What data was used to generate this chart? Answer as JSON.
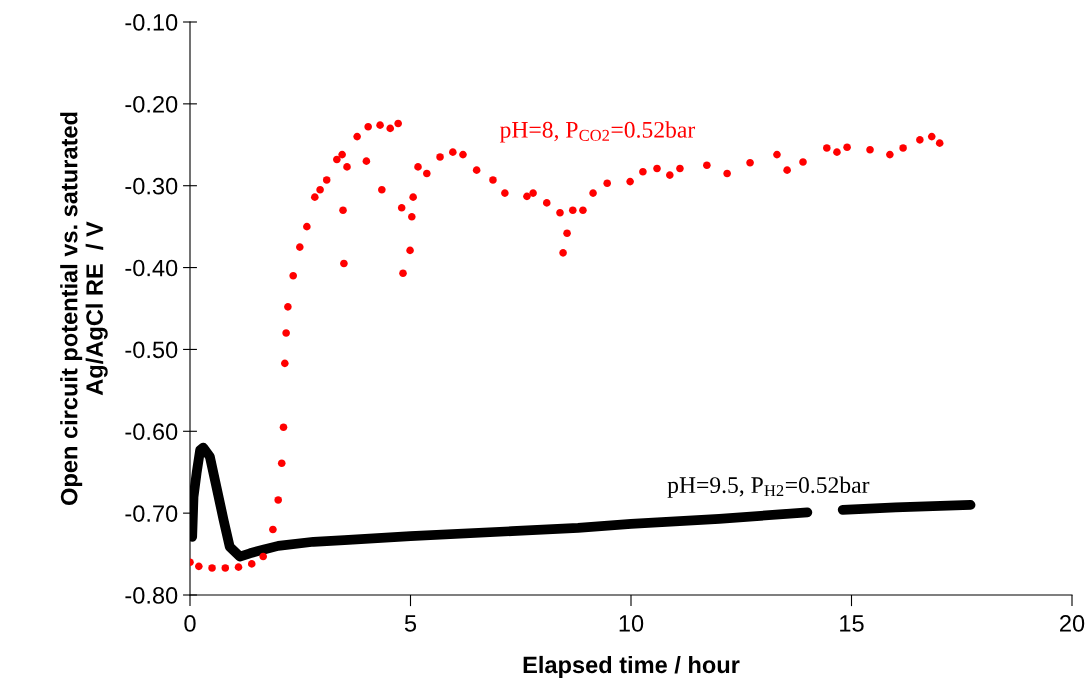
{
  "chart_data": {
    "type": "scatter",
    "xlabel": "Elapsed time / hour",
    "ylabel": "Open circuit potential vs. saturated\nAg/AgCl RE  / V",
    "xlim": [
      0,
      20
    ],
    "xticks": [
      0,
      5,
      10,
      15,
      20
    ],
    "ylim": [
      -0.8,
      -0.1
    ],
    "yticks": [
      {
        "value": -0.8,
        "label": "-0.80"
      },
      {
        "value": -0.7,
        "label": "-0.70"
      },
      {
        "value": -0.6,
        "label": "-0.60"
      },
      {
        "value": -0.5,
        "label": "-0.50"
      },
      {
        "value": -0.4,
        "label": "-0.40"
      },
      {
        "value": -0.3,
        "label": "-0.30"
      },
      {
        "value": -0.2,
        "label": "-0.20"
      },
      {
        "value": -0.1,
        "label": "-0.10"
      }
    ],
    "grid": false,
    "series": [
      {
        "name": "pH=8, P$_{CO2}$=0.52bar",
        "color": "#ff0000",
        "marker": "circle",
        "x": [
          0.0,
          0.2,
          0.5,
          0.8,
          1.1,
          1.4,
          1.66,
          1.88,
          2.0,
          2.08,
          2.12,
          2.15,
          2.18,
          2.22,
          2.34,
          2.49,
          2.65,
          2.83,
          2.95,
          3.1,
          3.33,
          3.45,
          3.47,
          3.49,
          3.56,
          3.79,
          4.0,
          4.04,
          4.31,
          4.35,
          4.54,
          4.72,
          4.8,
          4.83,
          4.99,
          5.03,
          5.06,
          5.17,
          5.37,
          5.67,
          5.96,
          6.19,
          6.5,
          6.87,
          7.14,
          7.64,
          7.78,
          8.09,
          8.39,
          8.46,
          8.55,
          8.68,
          8.91,
          9.14,
          9.46,
          9.98,
          10.27,
          10.59,
          10.88,
          11.11,
          11.72,
          12.18,
          12.7,
          13.31,
          13.54,
          13.9,
          14.44,
          14.67,
          14.9,
          15.42,
          15.87,
          16.17,
          16.55,
          16.82,
          17.0
        ],
        "values": [
          -0.76,
          -0.765,
          -0.767,
          -0.767,
          -0.766,
          -0.762,
          -0.753,
          -0.72,
          -0.684,
          -0.639,
          -0.595,
          -0.517,
          -0.48,
          -0.448,
          -0.41,
          -0.375,
          -0.35,
          -0.314,
          -0.305,
          -0.293,
          -0.268,
          -0.262,
          -0.33,
          -0.395,
          -0.277,
          -0.24,
          -0.27,
          -0.228,
          -0.226,
          -0.305,
          -0.23,
          -0.224,
          -0.327,
          -0.407,
          -0.379,
          -0.338,
          -0.314,
          -0.277,
          -0.285,
          -0.265,
          -0.259,
          -0.262,
          -0.281,
          -0.293,
          -0.309,
          -0.313,
          -0.309,
          -0.321,
          -0.333,
          -0.382,
          -0.358,
          -0.33,
          -0.33,
          -0.309,
          -0.297,
          -0.295,
          -0.283,
          -0.279,
          -0.287,
          -0.279,
          -0.275,
          -0.285,
          -0.272,
          -0.262,
          -0.281,
          -0.271,
          -0.254,
          -0.259,
          -0.253,
          -0.256,
          -0.262,
          -0.254,
          -0.244,
          -0.24,
          -0.248
        ]
      },
      {
        "name": "pH=9.5, P$_{H2}$=0.52bar",
        "color": "#000000",
        "type": "line",
        "marker": "none",
        "x": [
          0.05,
          0.08,
          0.15,
          0.23,
          0.3,
          0.45,
          0.6,
          0.76,
          0.9,
          1.13,
          1.36,
          1.7,
          2.0,
          2.8,
          3.5,
          5.0,
          7.3,
          8.8,
          10.0,
          12.0,
          14.0,
          14.1,
          14.8,
          16.0,
          17.7
        ],
        "values": [
          -0.729,
          -0.68,
          -0.651,
          -0.623,
          -0.62,
          -0.631,
          -0.668,
          -0.708,
          -0.741,
          -0.753,
          -0.749,
          -0.744,
          -0.74,
          -0.735,
          -0.733,
          -0.728,
          -0.722,
          -0.718,
          -0.713,
          -0.707,
          -0.699,
          null,
          -0.696,
          -0.693,
          -0.69
        ]
      }
    ]
  }
}
